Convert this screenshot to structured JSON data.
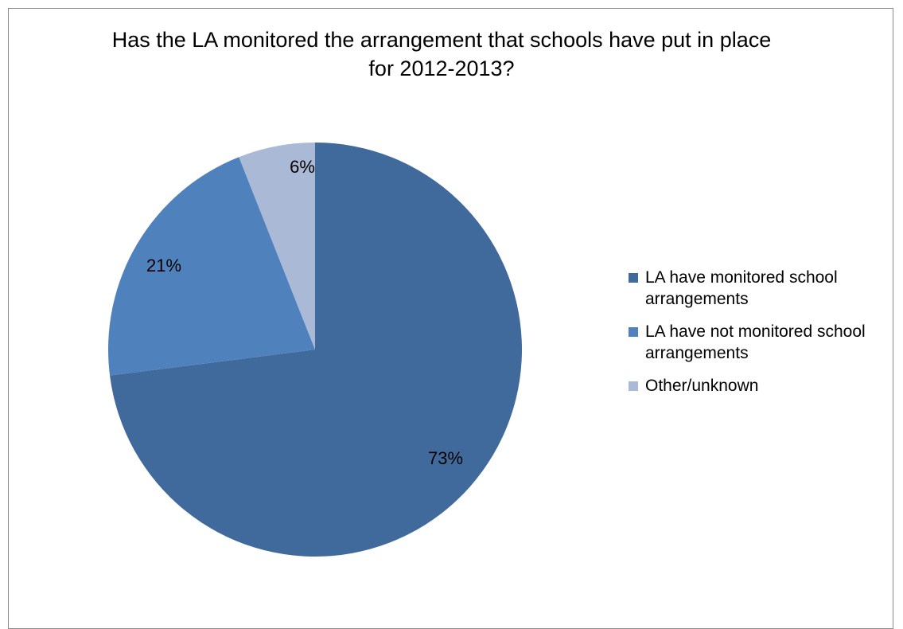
{
  "chart_data": {
    "type": "pie",
    "title": "Has the LA monitored the arrangement that schools have put in place for 2012-2013?",
    "categories": [
      "LA have monitored school arrangements",
      "LA have not monitored school arrangements",
      "Other/unknown"
    ],
    "values": [
      73,
      21,
      6
    ],
    "data_labels": [
      "73%",
      "21%",
      "6%"
    ],
    "colors": [
      "#416a9c",
      "#4f81bd",
      "#aab9d6"
    ],
    "start_angle_deg": 0,
    "direction": "clockwise",
    "legend_position": "right"
  }
}
